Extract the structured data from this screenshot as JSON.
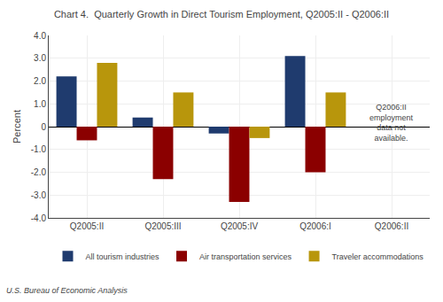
{
  "chart_data": {
    "type": "bar",
    "title": "Chart 4.  Quarterly Growth in Direct Tourism Employment, Q2005:II - Q2006:II",
    "categories": [
      "Q2005:II",
      "Q2005:III",
      "Q2005:IV",
      "Q2006:I",
      "Q2006:II"
    ],
    "series": [
      {
        "name": "All tourism industries",
        "color": "#1F3B6E",
        "values": [
          2.2,
          0.4,
          -0.3,
          3.1,
          null
        ]
      },
      {
        "name": "Air transportation services",
        "color": "#8B0000",
        "values": [
          -0.6,
          -2.3,
          -3.3,
          -2.0,
          null
        ]
      },
      {
        "name": "Traveler accommodations",
        "color": "#B8960C",
        "values": [
          2.8,
          1.5,
          -0.5,
          1.5,
          null
        ]
      }
    ],
    "ylabel": "Percent",
    "ylim": [
      -4.0,
      4.0
    ],
    "yticks": [
      {
        "value": -4.0,
        "label": "-4.0"
      },
      {
        "value": -3.0,
        "label": "-3.0"
      },
      {
        "value": -2.0,
        "label": "-2.0"
      },
      {
        "value": -1.0,
        "label": "-1.0"
      },
      0,
      {
        "value": 1.0,
        "label": "1.0"
      },
      {
        "value": 2.0,
        "label": "2.0"
      },
      {
        "value": 3.0,
        "label": "3.0"
      },
      {
        "value": 4.0,
        "label": "4.0"
      }
    ],
    "annotations": [
      "Q2006:II\nemployment\ndata not\navailable.",
      "U.S. Bureau of Economic Analysis"
    ],
    "grid": true,
    "legend": "bottom"
  }
}
